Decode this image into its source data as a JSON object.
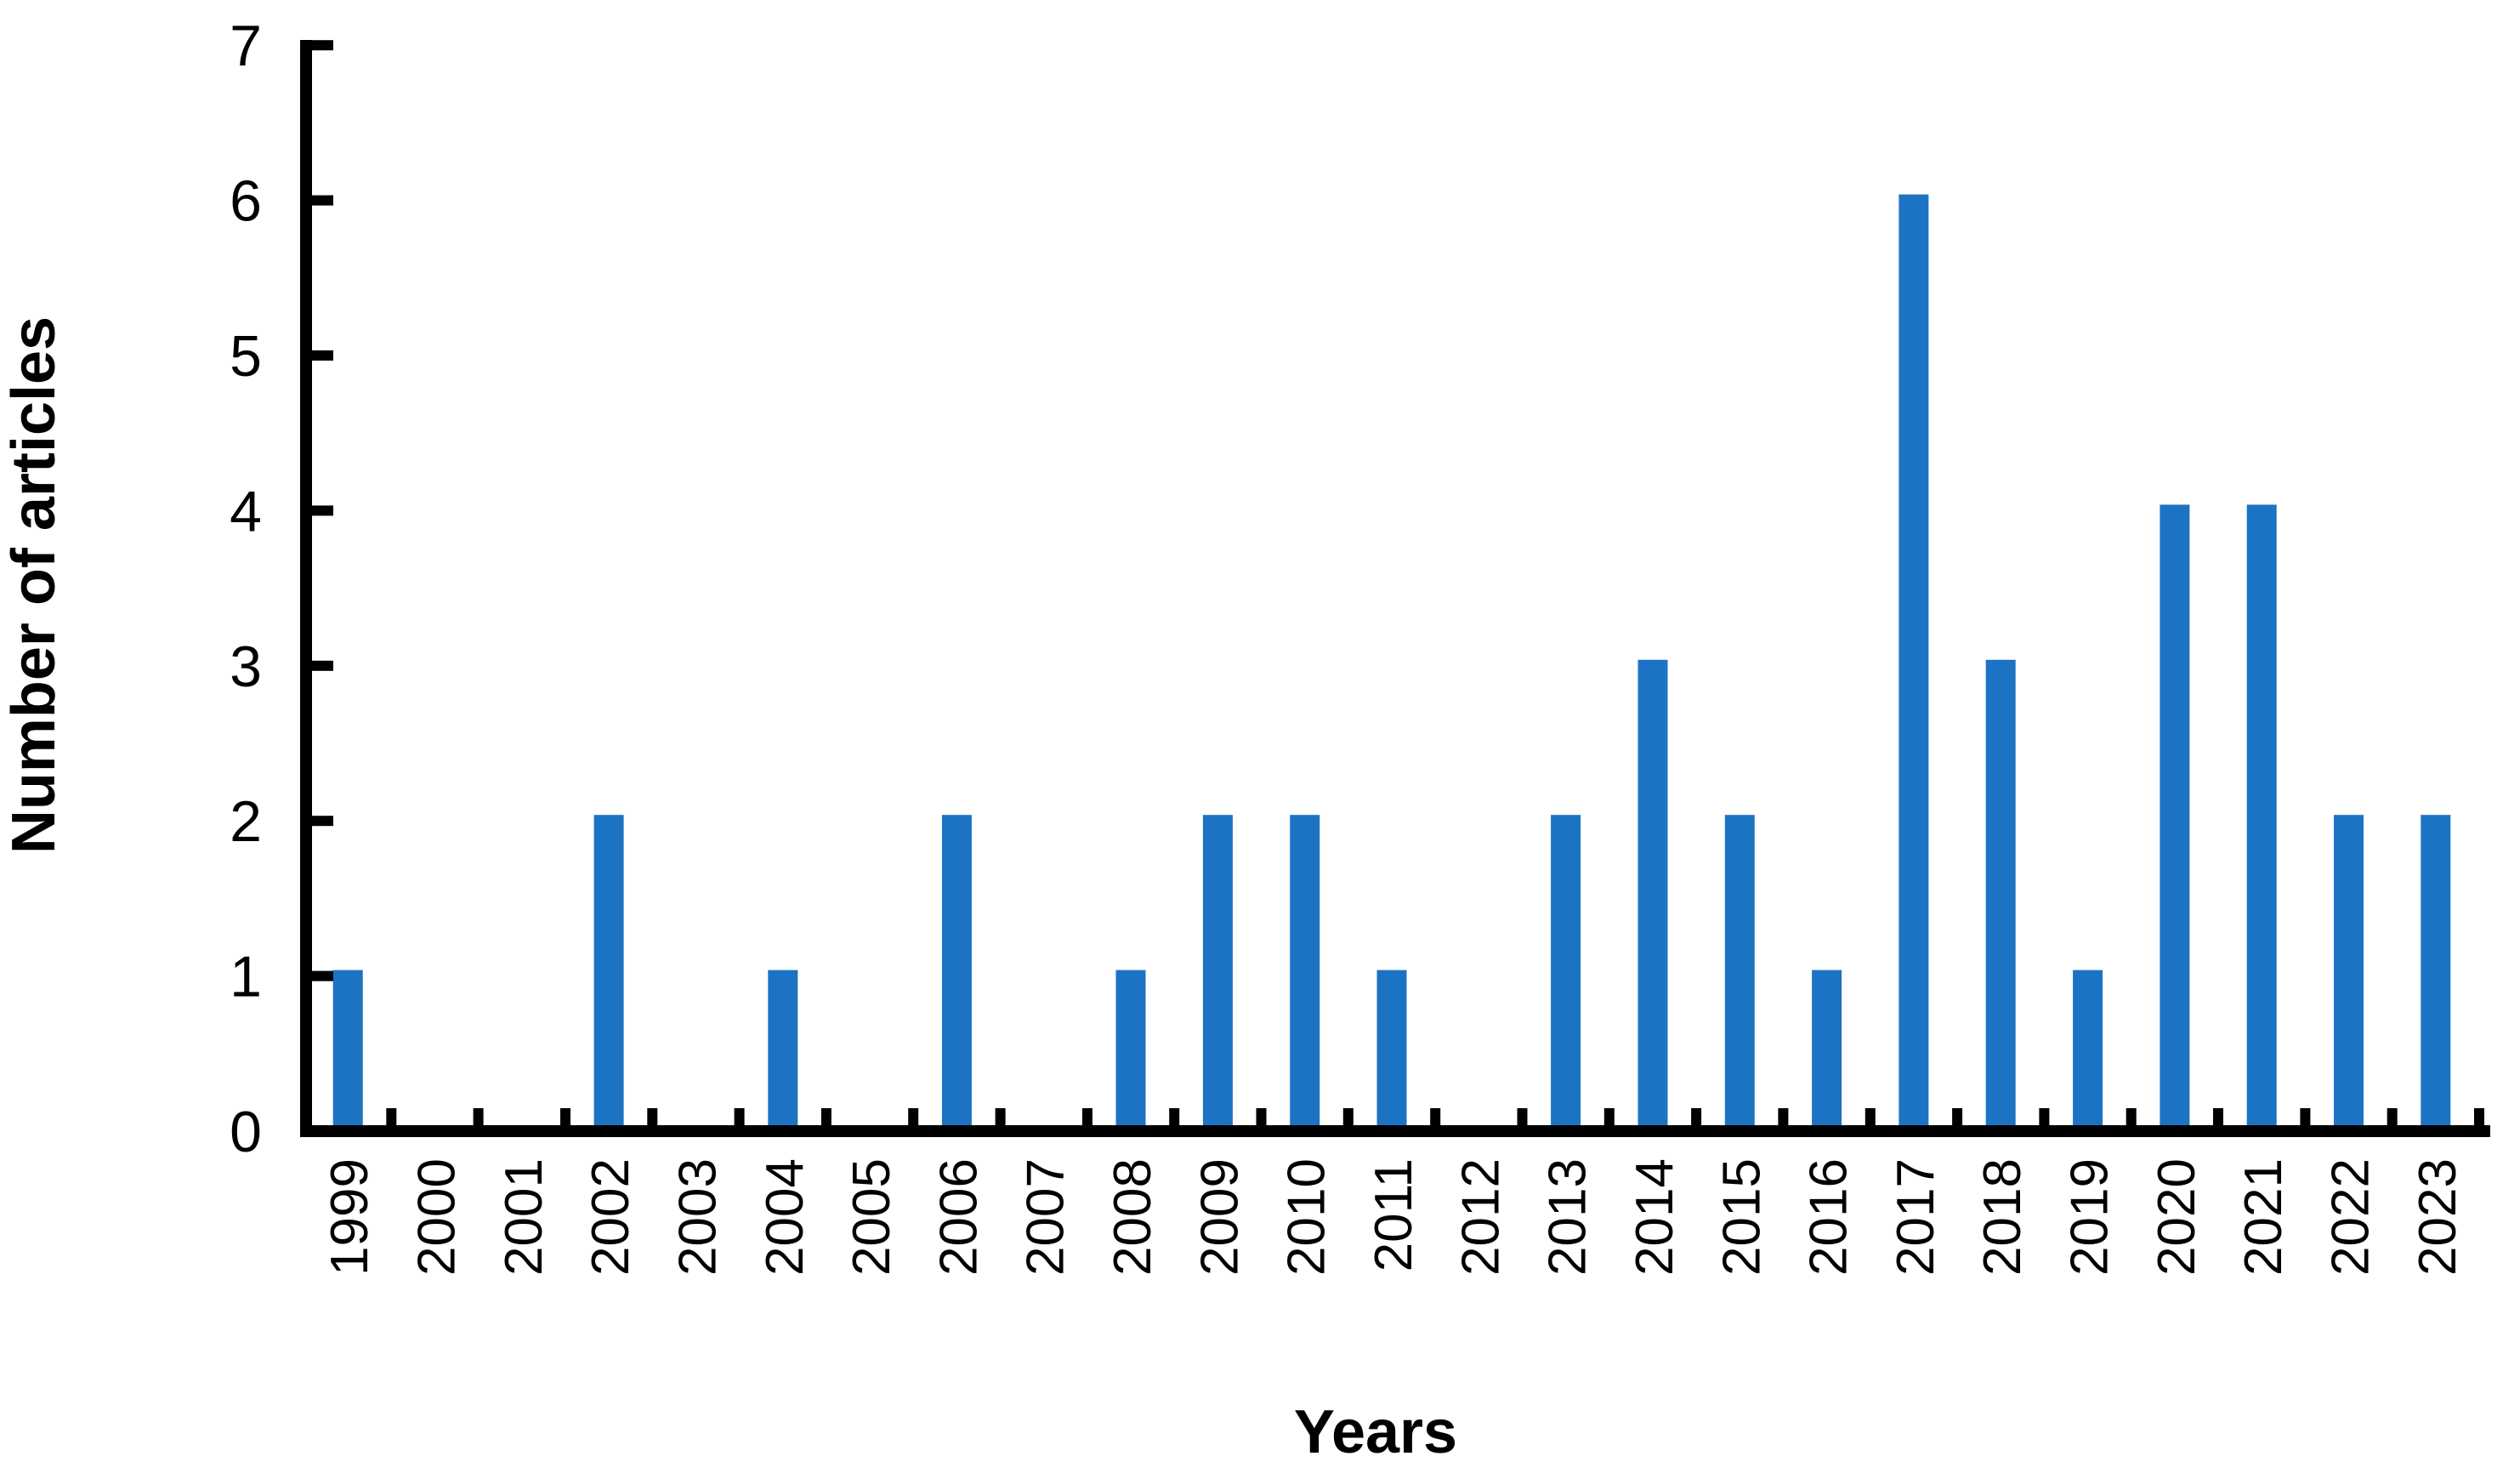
{
  "chart_data": {
    "type": "bar",
    "title": "",
    "xlabel": "Years",
    "ylabel": "Number of articles",
    "categories": [
      "1999",
      "2000",
      "2001",
      "2002",
      "2003",
      "2004",
      "2005",
      "2006",
      "2007",
      "2008",
      "2009",
      "2010",
      "2011",
      "2012",
      "2013",
      "2014",
      "2015",
      "2016",
      "2017",
      "2018",
      "2019",
      "2020",
      "2021",
      "2022",
      "2023"
    ],
    "values": [
      1,
      0,
      0,
      2,
      0,
      1,
      0,
      2,
      0,
      1,
      2,
      2,
      1,
      0,
      2,
      3,
      2,
      1,
      6,
      3,
      1,
      4,
      4,
      2,
      2
    ],
    "ylim": [
      0,
      7
    ],
    "yticks": [
      0,
      1,
      2,
      3,
      4,
      5,
      6,
      7
    ],
    "grid": false,
    "legend": null,
    "bar_color": "#1C73C4",
    "axis_color": "#000000",
    "background": "#FFFFFF"
  }
}
